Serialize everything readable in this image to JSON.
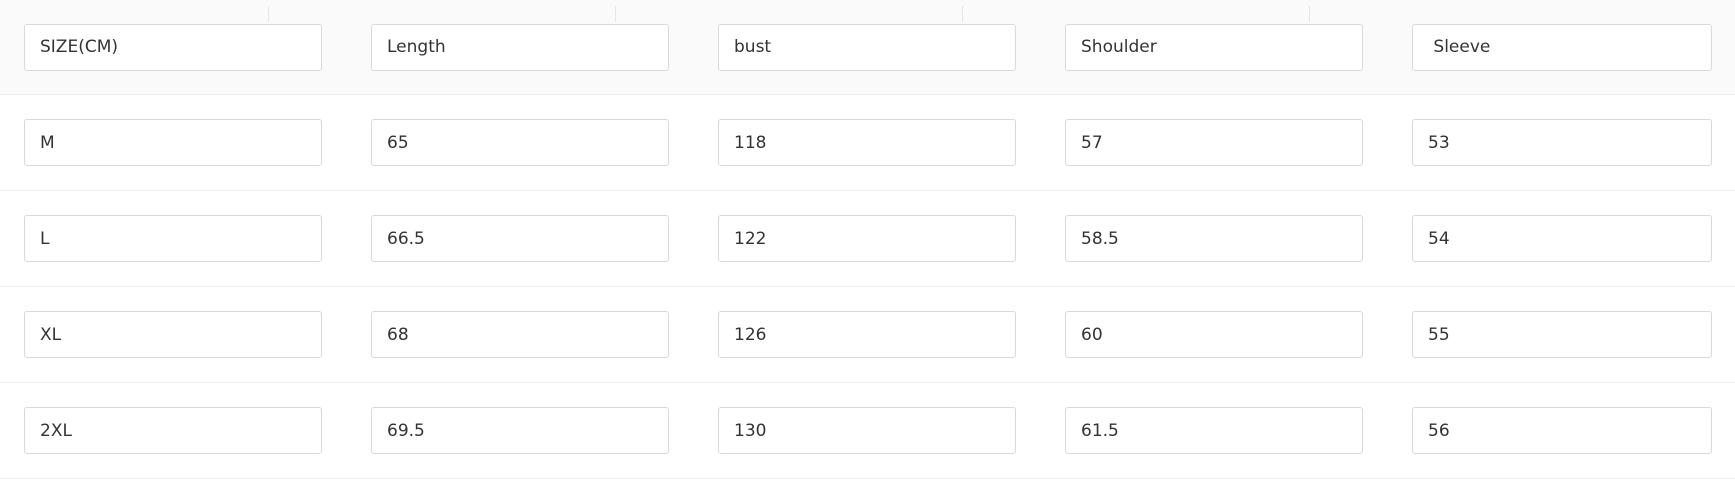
{
  "table": {
    "headers": [
      "SIZE(CM)",
      "Length",
      "bust",
      "Shoulder",
      " Sleeve"
    ],
    "rows": [
      [
        "M",
        "65",
        "118",
        "57",
        "53"
      ],
      [
        "L",
        "66.5",
        "122",
        "58.5",
        "54"
      ],
      [
        "XL",
        "68",
        "126",
        "60",
        "55"
      ],
      [
        "2XL",
        "69.5",
        "130",
        "61.5",
        "56"
      ]
    ]
  }
}
